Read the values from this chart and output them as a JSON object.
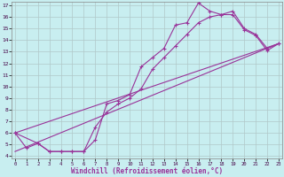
{
  "xlabel": "Windchill (Refroidissement éolien,°C)",
  "xlim": [
    0,
    23
  ],
  "ylim": [
    4,
    17
  ],
  "xticks": [
    0,
    1,
    2,
    3,
    4,
    5,
    6,
    7,
    8,
    9,
    10,
    11,
    12,
    13,
    14,
    15,
    16,
    17,
    18,
    19,
    20,
    21,
    22,
    23
  ],
  "yticks": [
    4,
    5,
    6,
    7,
    8,
    9,
    10,
    11,
    12,
    13,
    14,
    15,
    16,
    17
  ],
  "bg_color": "#c8eef0",
  "line_color": "#993399",
  "grid_color": "#b0c8c8",
  "curve1_x": [
    0,
    1,
    2,
    3,
    4,
    5,
    6,
    7,
    8,
    9,
    10,
    11,
    12,
    13,
    14,
    15,
    16,
    17,
    18,
    19,
    20,
    21,
    22,
    23
  ],
  "curve1_y": [
    6.0,
    4.7,
    5.1,
    4.4,
    4.4,
    4.4,
    4.4,
    5.4,
    8.5,
    8.8,
    9.3,
    11.7,
    12.5,
    13.3,
    15.3,
    15.5,
    17.2,
    16.5,
    16.2,
    16.2,
    14.9,
    14.4,
    13.1,
    13.7
  ],
  "curve2_x": [
    0,
    2,
    3,
    4,
    5,
    6,
    7,
    8,
    9,
    10,
    11,
    12,
    13,
    14,
    15,
    16,
    17,
    18,
    19,
    20,
    21,
    22,
    23
  ],
  "curve2_y": [
    6.0,
    5.1,
    4.4,
    4.4,
    4.4,
    4.4,
    6.5,
    7.8,
    8.5,
    9.0,
    9.8,
    11.5,
    12.5,
    13.5,
    14.5,
    15.5,
    16.0,
    16.2,
    16.5,
    15.0,
    14.5,
    13.3,
    13.7
  ],
  "line1_x": [
    0,
    23
  ],
  "line1_y": [
    6.0,
    13.7
  ],
  "line2_x": [
    0,
    23
  ],
  "line2_y": [
    4.4,
    13.7
  ]
}
